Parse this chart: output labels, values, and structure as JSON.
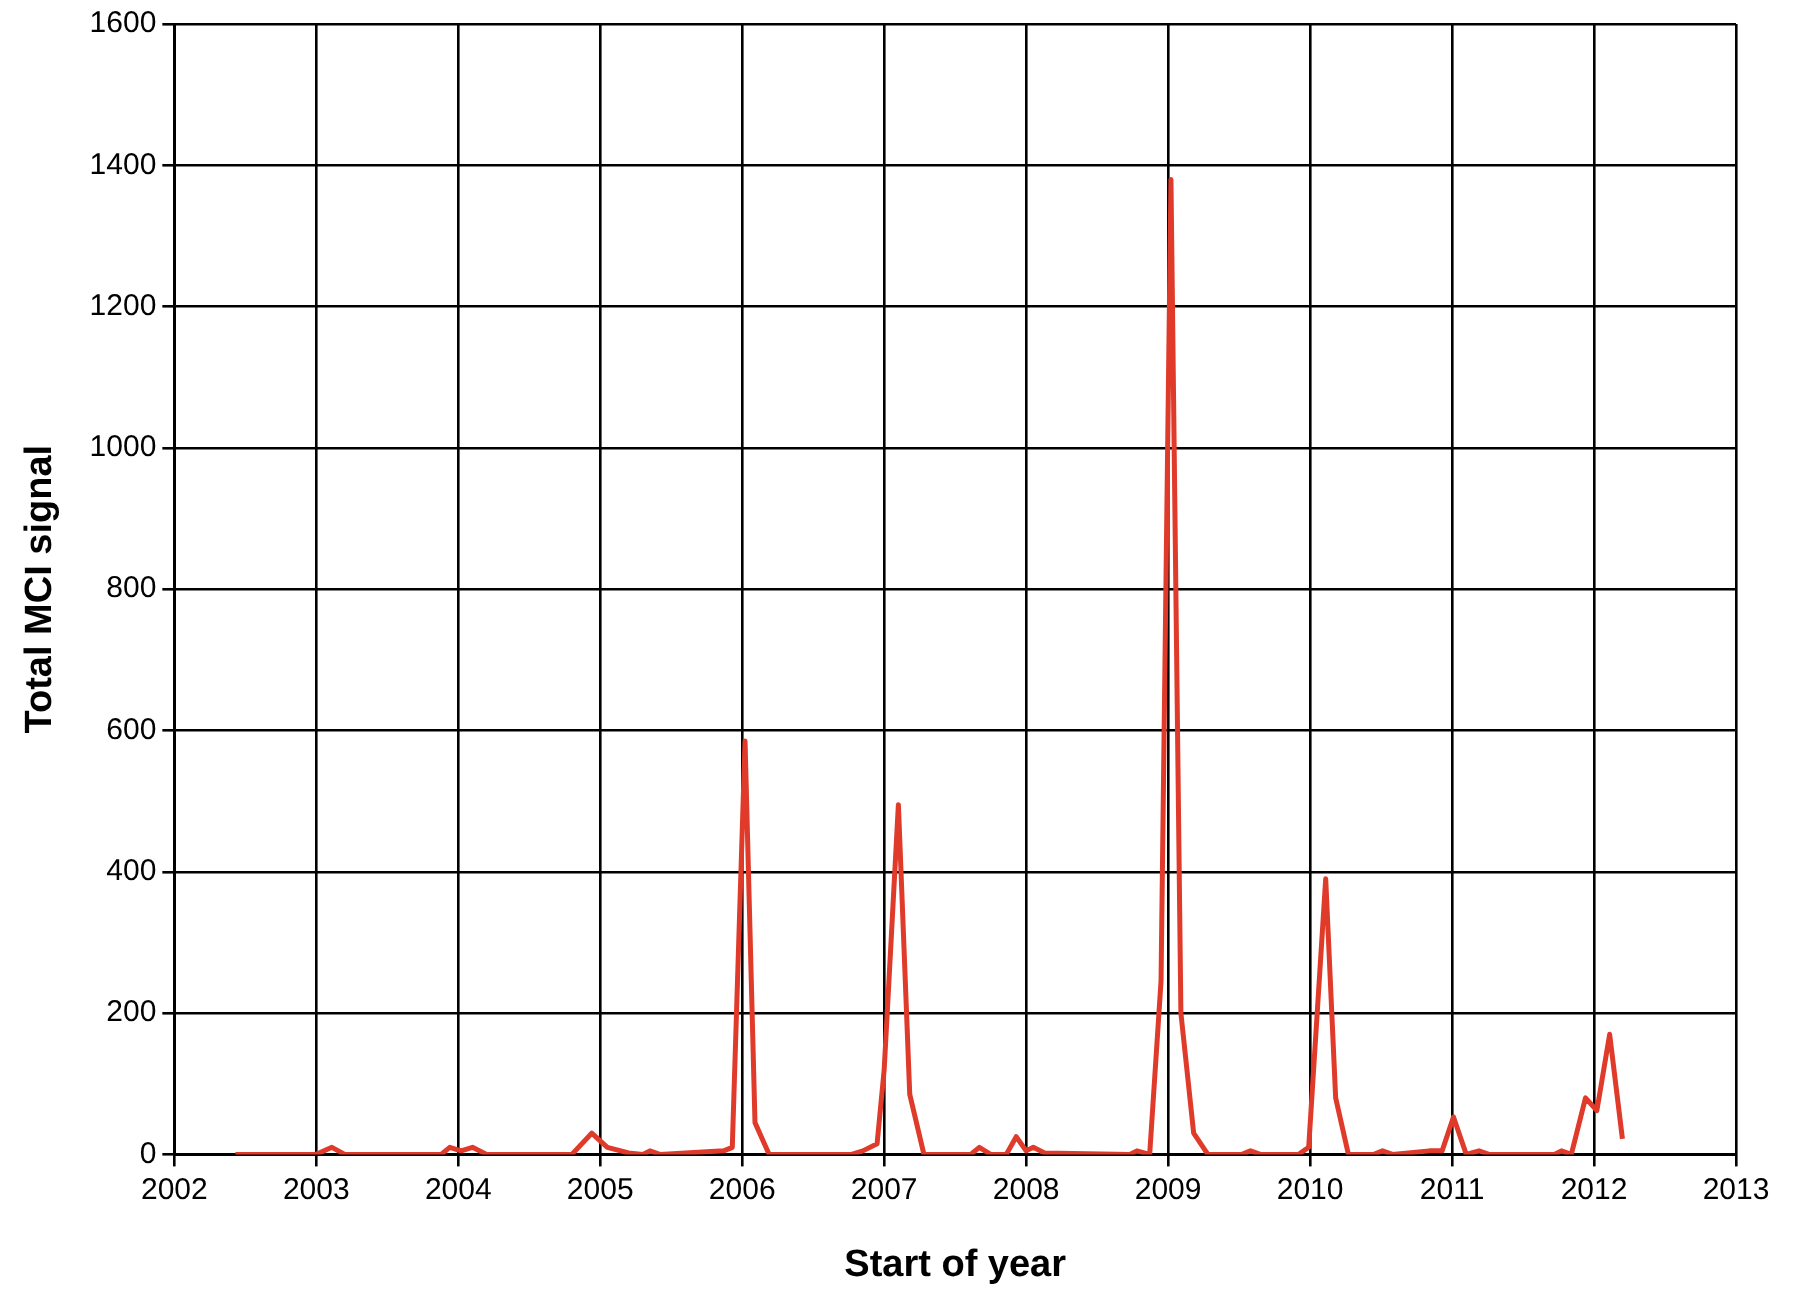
{
  "chart_data": {
    "type": "line",
    "xlabel": "Start of year",
    "ylabel": "Total MCI signal",
    "xlim": [
      2002,
      2013
    ],
    "xticks": [
      2002,
      2003,
      2004,
      2005,
      2006,
      2007,
      2008,
      2009,
      2010,
      2011,
      2012,
      2013
    ],
    "ylim": [
      0,
      1600
    ],
    "yticks": [
      0,
      200,
      400,
      600,
      800,
      1000,
      1200,
      1400,
      1600
    ],
    "grid": true,
    "legend": false,
    "marker": "none",
    "line_style": "solid",
    "series": [
      {
        "color": "#e03a2a",
        "x": [
          2002.43,
          2003.0,
          2003.11,
          2003.2,
          2003.88,
          2003.94,
          2004.02,
          2004.1,
          2004.2,
          2004.8,
          2004.94,
          2005.05,
          2005.2,
          2005.3,
          2005.35,
          2005.42,
          2005.87,
          2005.93,
          2006.02,
          2006.09,
          2006.19,
          2006.77,
          2006.85,
          2006.95,
          2007.0,
          2007.1,
          2007.18,
          2007.28,
          2007.61,
          2007.67,
          2007.75,
          2007.86,
          2007.93,
          2008.0,
          2008.05,
          2008.13,
          2008.73,
          2008.78,
          2008.87,
          2008.95,
          2009.02,
          2009.09,
          2009.18,
          2009.28,
          2009.52,
          2009.58,
          2009.65,
          2009.92,
          2009.99,
          2010.11,
          2010.18,
          2010.27,
          2010.45,
          2010.51,
          2010.58,
          2010.84,
          2010.93,
          2011.01,
          2011.1,
          2011.19,
          2011.26,
          2011.72,
          2011.77,
          2011.84,
          2011.94,
          2012.02,
          2012.11,
          2012.2
        ],
        "values": [
          0,
          0,
          10,
          0,
          0,
          10,
          5,
          10,
          0,
          0,
          30,
          10,
          2,
          0,
          5,
          0,
          5,
          10,
          585,
          45,
          0,
          0,
          5,
          15,
          120,
          495,
          85,
          0,
          0,
          10,
          0,
          0,
          25,
          5,
          10,
          2,
          0,
          5,
          0,
          245,
          1380,
          200,
          30,
          0,
          0,
          5,
          0,
          0,
          10,
          390,
          80,
          0,
          0,
          5,
          0,
          5,
          5,
          53,
          0,
          5,
          0,
          0,
          5,
          0,
          80,
          62,
          170,
          22
        ]
      }
    ]
  }
}
